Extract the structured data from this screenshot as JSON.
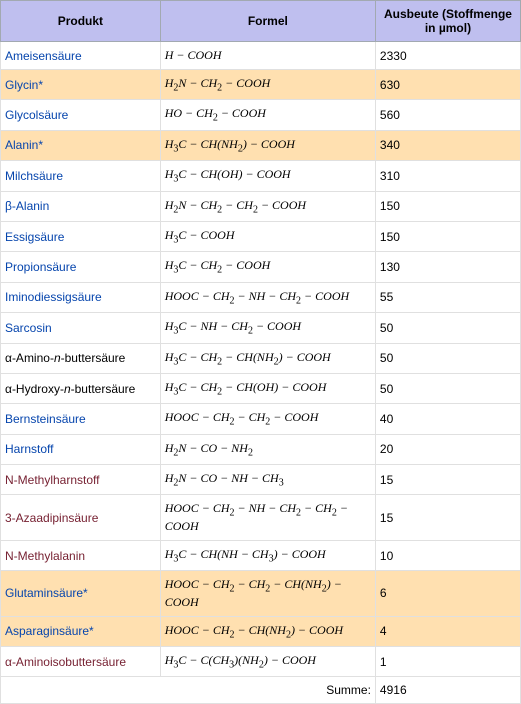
{
  "columns": {
    "product": "Produkt",
    "formula": "Formel",
    "yield": "Ausbeute (Stoffmenge in µmol)"
  },
  "rows": [
    {
      "product": "Ameisensäure",
      "formula": "H − COOH",
      "yield": "2330",
      "link": true,
      "hl": false
    },
    {
      "product": "Glycin*",
      "formula": "H₂N − CH₂ − COOH",
      "yield": "630",
      "link": true,
      "hl": true
    },
    {
      "product": "Glycolsäure",
      "formula": "HO − CH₂ − COOH",
      "yield": "560",
      "link": true,
      "hl": false
    },
    {
      "product": "Alanin*",
      "formula": "H₃C − CH(NH₂) − COOH",
      "yield": "340",
      "link": true,
      "hl": true
    },
    {
      "product": "Milchsäure",
      "formula": "H₃C − CH(OH) − COOH",
      "yield": "310",
      "link": true,
      "hl": false
    },
    {
      "product": "β-Alanin",
      "formula": "H₂N − CH₂ − CH₂ − COOH",
      "yield": "150",
      "link": true,
      "hl": false
    },
    {
      "product": "Essigsäure",
      "formula": "H₃C − COOH",
      "yield": "150",
      "link": true,
      "hl": false
    },
    {
      "product": "Propionsäure",
      "formula": "H₃C − CH₂ − COOH",
      "yield": "130",
      "link": true,
      "hl": false
    },
    {
      "product": "Iminodiessigsäure",
      "formula": "HOOC − CH₂ − NH − CH₂ − COOH",
      "yield": "55",
      "link": true,
      "hl": false
    },
    {
      "product": "Sarcosin",
      "formula": "H₃C − NH − CH₂ − COOH",
      "yield": "50",
      "link": true,
      "hl": false
    },
    {
      "product": "α-Amino-n-buttersäure",
      "formula": "H₃C − CH₂ − CH(NH₂) − COOH",
      "yield": "50",
      "link": false,
      "hl": false
    },
    {
      "product": "α-Hydroxy-n-buttersäure",
      "formula": "H₃C − CH₂ − CH(OH) − COOH",
      "yield": "50",
      "link": false,
      "hl": false
    },
    {
      "product": "Bernsteinsäure",
      "formula": "HOOC − CH₂ − CH₂ − COOH",
      "yield": "40",
      "link": true,
      "hl": false
    },
    {
      "product": "Harnstoff",
      "formula": "H₂N − CO − NH₂",
      "yield": "20",
      "link": true,
      "hl": false
    },
    {
      "product": "N-Methylharnstoff",
      "formula": "H₂N − CO − NH − CH₃",
      "yield": "15",
      "link": false,
      "hl": false,
      "dark": true
    },
    {
      "product": "3-Azaadipinsäure",
      "formula": "HOOC − CH₂ − NH − CH₂ − CH₂ − COOH",
      "yield": "15",
      "link": false,
      "hl": false,
      "dark": true
    },
    {
      "product": "N-Methylalanin",
      "formula": "H₃C − CH(NH − CH₃) − COOH",
      "yield": "10",
      "link": false,
      "hl": false,
      "dark": true
    },
    {
      "product": "Glutaminsäure*",
      "formula": "HOOC − CH₂ − CH₂ − CH(NH₂) − COOH",
      "yield": "6",
      "link": true,
      "hl": true
    },
    {
      "product": "Asparaginsäure*",
      "formula": "HOOC − CH₂ − CH(NH₂) − COOH",
      "yield": "4",
      "link": true,
      "hl": true
    },
    {
      "product": "α-Aminoisobuttersäure",
      "formula": "H₃C − C(CH₃)(NH₂) − COOH",
      "yield": "1",
      "link": false,
      "hl": false,
      "dark": true
    }
  ],
  "sum": {
    "label": "Summe:",
    "value": "4916"
  },
  "colors": {
    "header_bg": "#bfbfef",
    "highlight_bg": "#ffe0b0",
    "link": "#0645ad",
    "dark": "#772233"
  }
}
